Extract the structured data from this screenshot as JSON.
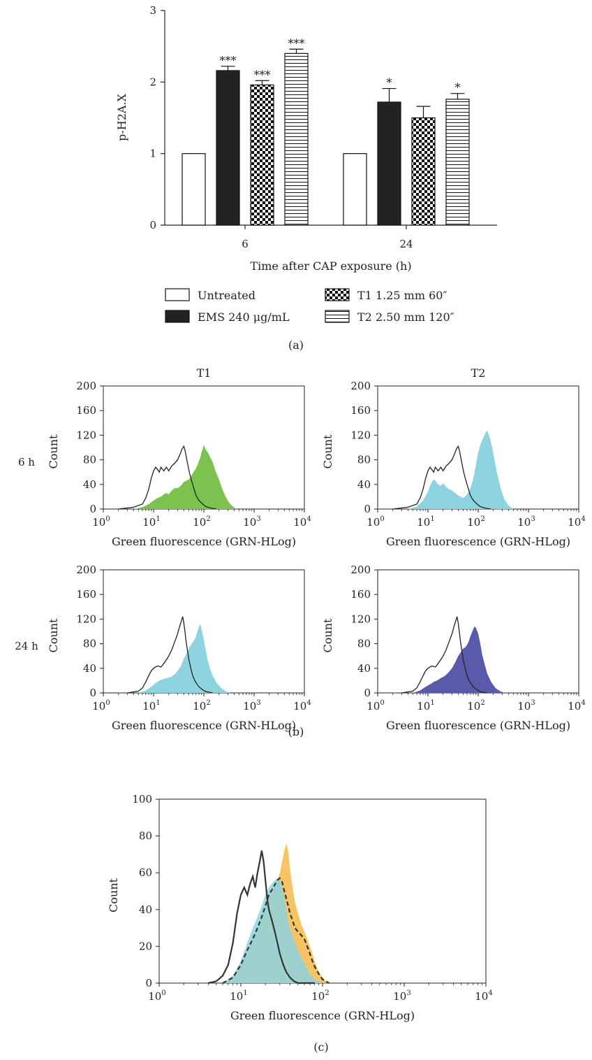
{
  "chart_data": [
    {
      "panel": "(a)",
      "type": "bar",
      "ylabel": "p-H2A.X",
      "xlabel": "Time after CAP exposure (h)",
      "ylim": [
        0,
        3
      ],
      "yticks": [
        "0",
        "1",
        "2",
        "3"
      ],
      "categories": [
        "6",
        "24"
      ],
      "series": [
        {
          "name": "Untreated",
          "pattern": "white",
          "values": [
            1.0,
            1.0
          ],
          "errors": [
            0,
            0
          ],
          "sig": [
            "",
            ""
          ]
        },
        {
          "name": "EMS 240 μg/mL",
          "pattern": "black",
          "values": [
            2.16,
            1.72
          ],
          "errors": [
            0.06,
            0.19
          ],
          "sig": [
            "***",
            "*"
          ]
        },
        {
          "name": "T1 1.25 mm 60″",
          "pattern": "checker",
          "values": [
            1.96,
            1.5
          ],
          "errors": [
            0.06,
            0.16
          ],
          "sig": [
            "***",
            ""
          ]
        },
        {
          "name": "T2 2.50 mm 120″",
          "pattern": "hstripe",
          "values": [
            2.4,
            1.76
          ],
          "errors": [
            0.06,
            0.08
          ],
          "sig": [
            "***",
            "*"
          ]
        }
      ]
    },
    {
      "panel": "(b)",
      "type": "area",
      "xscale": "log",
      "xlim": [
        1,
        10000
      ],
      "ylim": [
        0,
        200
      ],
      "yticks": [
        "0",
        "40",
        "80",
        "120",
        "160",
        "200"
      ],
      "xticks": [
        "10",
        "10",
        "10",
        "10",
        "10"
      ],
      "xtick_exponents": [
        "0",
        "1",
        "2",
        "3",
        "4"
      ],
      "xlabel": "Green fluorescence (GRN-HLog)",
      "ylabel": "Count",
      "col_titles": [
        "T1",
        "T2"
      ],
      "row_labels": [
        "6 h",
        "24 h"
      ],
      "control_color": "#222222",
      "subplots": [
        {
          "row": "6 h",
          "col": "T1",
          "fill": "#7cc24e",
          "control": {
            "x": [
              2,
              4,
              6,
              7,
              8,
              9,
              10,
              11,
              12,
              13,
              14,
              16,
              18,
              20,
              23,
              26,
              30,
              34,
              37,
              40,
              42,
              45,
              48,
              52,
              57,
              63,
              70,
              80,
              95,
              110,
              130,
              150,
              180
            ],
            "y": [
              0,
              3,
              8,
              18,
              32,
              50,
              62,
              68,
              64,
              60,
              68,
              62,
              68,
              62,
              70,
              74,
              80,
              90,
              98,
              102,
              96,
              84,
              72,
              58,
              46,
              34,
              22,
              14,
              8,
              4,
              2,
              1,
              0
            ]
          },
          "treated": {
            "x": [
              4,
              6,
              8,
              10,
              12,
              14,
              16,
              18,
              20,
              23,
              26,
              30,
              35,
              40,
              45,
              50,
              55,
              60,
              65,
              70,
              75,
              80,
              85,
              90,
              95,
              100,
              110,
              120,
              130,
              150,
              170,
              200,
              230,
              270,
              320,
              380,
              450
            ],
            "y": [
              0,
              3,
              8,
              14,
              18,
              20,
              24,
              26,
              24,
              30,
              34,
              34,
              38,
              44,
              46,
              48,
              52,
              58,
              62,
              66,
              72,
              78,
              84,
              92,
              98,
              104,
              96,
              92,
              86,
              76,
              62,
              48,
              34,
              20,
              10,
              4,
              0
            ]
          }
        },
        {
          "row": "6 h",
          "col": "T2",
          "fill": "#8ed4e0",
          "control": {
            "x": [
              2,
              4,
              6,
              7,
              8,
              9,
              10,
              11,
              12,
              13,
              14,
              16,
              18,
              20,
              23,
              26,
              30,
              34,
              37,
              40,
              42,
              45,
              48,
              52,
              57,
              63,
              70,
              80,
              95,
              110,
              130,
              150,
              180
            ],
            "y": [
              0,
              3,
              8,
              18,
              32,
              50,
              62,
              68,
              64,
              60,
              68,
              62,
              68,
              62,
              70,
              74,
              80,
              90,
              98,
              102,
              96,
              84,
              72,
              58,
              46,
              34,
              22,
              14,
              8,
              4,
              2,
              1,
              0
            ]
          },
          "treated": {
            "x": [
              4,
              6,
              8,
              10,
              11,
              12,
              13,
              14,
              16,
              18,
              20,
              23,
              26,
              30,
              35,
              40,
              45,
              50,
              55,
              60,
              65,
              70,
              75,
              80,
              85,
              90,
              95,
              100,
              110,
              120,
              130,
              140,
              150,
              170,
              190,
              210,
              240,
              280,
              330,
              400,
              500
            ],
            "y": [
              0,
              4,
              14,
              28,
              38,
              44,
              48,
              46,
              40,
              38,
              42,
              36,
              32,
              30,
              26,
              22,
              20,
              18,
              20,
              24,
              28,
              34,
              42,
              50,
              60,
              72,
              82,
              92,
              104,
              112,
              118,
              124,
              128,
              116,
              100,
              80,
              56,
              34,
              16,
              6,
              0
            ]
          }
        },
        {
          "row": "24 h",
          "col": "T1",
          "fill": "#8ed4e0",
          "control": {
            "x": [
              3,
              5,
              6,
              7,
              8,
              9,
              10,
              12,
              14,
              16,
              18,
              20,
              23,
              26,
              30,
              33,
              36,
              38,
              40,
              42,
              44,
              47,
              50,
              55,
              60,
              68,
              80,
              95,
              110,
              130,
              150
            ],
            "y": [
              0,
              3,
              8,
              18,
              28,
              36,
              40,
              44,
              42,
              48,
              54,
              60,
              70,
              82,
              96,
              108,
              118,
              124,
              114,
              100,
              86,
              70,
              56,
              40,
              28,
              18,
              10,
              5,
              2,
              1,
              0
            ]
          },
          "treated": {
            "x": [
              5,
              7,
              9,
              11,
              13,
              15,
              18,
              22,
              26,
              30,
              35,
              40,
              45,
              50,
              55,
              60,
              65,
              70,
              75,
              80,
              85,
              90,
              100,
              110,
              120,
              135,
              150,
              180,
              220,
              270,
              330
            ],
            "y": [
              0,
              4,
              10,
              16,
              20,
              22,
              24,
              26,
              30,
              36,
              44,
              56,
              64,
              72,
              78,
              82,
              86,
              92,
              100,
              108,
              112,
              104,
              86,
              68,
              52,
              38,
              28,
              16,
              8,
              3,
              0
            ]
          }
        },
        {
          "row": "24 h",
          "col": "T2",
          "fill": "#5a5aab",
          "control": {
            "x": [
              3,
              5,
              6,
              7,
              8,
              9,
              10,
              12,
              14,
              16,
              18,
              20,
              23,
              26,
              30,
              33,
              36,
              38,
              40,
              42,
              44,
              47,
              50,
              55,
              60,
              68,
              80,
              95,
              110,
              130,
              150
            ],
            "y": [
              0,
              3,
              8,
              18,
              28,
              36,
              40,
              44,
              42,
              48,
              54,
              60,
              70,
              82,
              96,
              108,
              118,
              124,
              114,
              100,
              86,
              70,
              56,
              40,
              28,
              18,
              10,
              5,
              2,
              1,
              0
            ]
          },
          "treated": {
            "x": [
              5,
              7,
              9,
              11,
              13,
              15,
              18,
              22,
              26,
              30,
              35,
              40,
              45,
              50,
              55,
              60,
              65,
              70,
              75,
              80,
              85,
              90,
              100,
              110,
              120,
              135,
              150,
              180,
              220,
              270,
              330
            ],
            "y": [
              0,
              4,
              10,
              14,
              18,
              20,
              24,
              28,
              34,
              40,
              50,
              60,
              66,
              72,
              74,
              78,
              84,
              92,
              98,
              104,
              108,
              106,
              96,
              80,
              62,
              46,
              32,
              18,
              8,
              3,
              0
            ]
          }
        }
      ]
    },
    {
      "panel": "(c)",
      "type": "area",
      "xscale": "log",
      "xlim": [
        1,
        10000
      ],
      "ylim": [
        0,
        100
      ],
      "yticks": [
        "0",
        "20",
        "40",
        "60",
        "80",
        "100"
      ],
      "xticks": [
        "10",
        "10",
        "10",
        "10",
        "10"
      ],
      "xtick_exponents": [
        "0",
        "1",
        "2",
        "3",
        "4"
      ],
      "xlabel": "Green fluorescence (GRN-HLog)",
      "ylabel": "Count",
      "filled": [
        {
          "fill": "#f5b84a",
          "x": [
            6,
            8,
            10,
            12,
            14,
            16,
            18,
            20,
            22,
            25,
            28,
            30,
            32,
            34,
            36,
            38,
            40,
            43,
            46,
            50,
            55,
            60,
            65,
            70,
            75,
            80,
            90,
            100,
            110,
            120,
            130
          ],
          "y": [
            0,
            3,
            10,
            18,
            24,
            30,
            36,
            42,
            48,
            52,
            56,
            60,
            66,
            72,
            76,
            72,
            62,
            52,
            44,
            38,
            32,
            28,
            24,
            20,
            16,
            12,
            6,
            3,
            1,
            0,
            0
          ]
        },
        {
          "fill": "#8ed4e0",
          "x": [
            6,
            8,
            10,
            12,
            14,
            16,
            18,
            20,
            22,
            25,
            28,
            30,
            32,
            34,
            36,
            38,
            40,
            43,
            46,
            50,
            55,
            60,
            65,
            70,
            80,
            90,
            100
          ],
          "y": [
            0,
            4,
            12,
            22,
            30,
            36,
            42,
            48,
            52,
            55,
            57,
            56,
            52,
            46,
            40,
            34,
            30,
            26,
            22,
            18,
            14,
            11,
            8,
            5,
            2,
            1,
            0
          ]
        }
      ],
      "lines": [
        {
          "stroke": "#333333",
          "dash": "solid",
          "x": [
            4,
            5,
            6,
            7,
            8,
            9,
            10,
            11,
            12,
            13,
            14,
            15,
            16,
            17,
            18,
            19,
            20,
            21,
            22,
            24,
            26,
            28,
            30,
            33,
            36,
            40,
            45,
            50,
            60,
            70,
            80
          ],
          "y": [
            0,
            1,
            4,
            10,
            22,
            38,
            48,
            52,
            48,
            54,
            58,
            52,
            60,
            66,
            72,
            66,
            56,
            46,
            40,
            34,
            28,
            22,
            16,
            10,
            6,
            3,
            1,
            0,
            0,
            0,
            0
          ]
        },
        {
          "stroke": "#333333",
          "dash": "dashed",
          "x": [
            6,
            8,
            10,
            12,
            14,
            16,
            18,
            20,
            22,
            25,
            28,
            30,
            32,
            34,
            36,
            38,
            40,
            43,
            46,
            50,
            55,
            60,
            65,
            70,
            75,
            80,
            90,
            100,
            110,
            120
          ],
          "y": [
            0,
            3,
            10,
            18,
            24,
            30,
            36,
            42,
            48,
            52,
            56,
            57,
            55,
            50,
            46,
            42,
            38,
            34,
            30,
            28,
            26,
            24,
            20,
            16,
            12,
            9,
            5,
            2,
            1,
            0
          ]
        }
      ]
    }
  ],
  "labels": {
    "panel_a": "(a)",
    "panel_b": "(b)",
    "panel_c": "(c)"
  }
}
